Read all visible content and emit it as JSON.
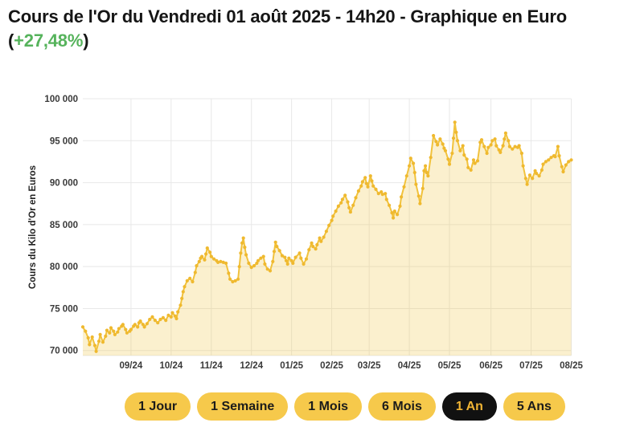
{
  "header": {
    "title": "Cours de l'Or du Vendredi 01 août 2025 - 14h20 - Graphique en Euro",
    "change": {
      "prefix": "(",
      "value": "+27,48%",
      "suffix": ")"
    }
  },
  "colors": {
    "accent_yellow": "#F6C94B",
    "active_pill_bg": "#111111",
    "active_pill_text": "#F0B434",
    "pill_text": "#1b1b1b",
    "positive_green": "#56B35C",
    "line": "#F1C23C",
    "marker": "#EFB92F",
    "area_fill": "#F1C23C",
    "grid": "#E8E8E8",
    "axis_text": "#3a3a3a"
  },
  "chart_data": {
    "type": "area",
    "title": "",
    "ylabel": "Cours du Kilo d'Or en Euros",
    "xlabel": "",
    "grid": true,
    "legend": "none",
    "x_start": "2024-08-01",
    "x_end": "2025-08-01",
    "x_span_days": 365,
    "ylim": [
      69400,
      100000
    ],
    "y_ticks": [
      {
        "value": 70000,
        "label": "70 000"
      },
      {
        "value": 75000,
        "label": "75 000"
      },
      {
        "value": 80000,
        "label": "80 000"
      },
      {
        "value": 85000,
        "label": "85 000"
      },
      {
        "value": 90000,
        "label": "90 000"
      },
      {
        "value": 95000,
        "label": "95 000"
      },
      {
        "value": 100000,
        "label": "100 000"
      }
    ],
    "x_ticks": [
      {
        "day": 36,
        "label": "09/24"
      },
      {
        "day": 66,
        "label": "10/24"
      },
      {
        "day": 96,
        "label": "11/24"
      },
      {
        "day": 126,
        "label": "12/24"
      },
      {
        "day": 156,
        "label": "01/25"
      },
      {
        "day": 186,
        "label": "02/25"
      },
      {
        "day": 214,
        "label": "03/25"
      },
      {
        "day": 244,
        "label": "04/25"
      },
      {
        "day": 274,
        "label": "05/25"
      },
      {
        "day": 305,
        "label": "06/25"
      },
      {
        "day": 335,
        "label": "07/25"
      },
      {
        "day": 365,
        "label": "08/25"
      }
    ],
    "series": [
      {
        "name": "Cours du Kilo d'Or en Euros",
        "points": [
          [
            0,
            72800
          ],
          [
            2,
            72300
          ],
          [
            4,
            71500
          ],
          [
            5,
            70700
          ],
          [
            7,
            71600
          ],
          [
            9,
            70600
          ],
          [
            10,
            69900
          ],
          [
            12,
            71100
          ],
          [
            13,
            71900
          ],
          [
            15,
            71000
          ],
          [
            17,
            71700
          ],
          [
            18,
            72400
          ],
          [
            20,
            72100
          ],
          [
            21,
            72700
          ],
          [
            23,
            72300
          ],
          [
            24,
            71900
          ],
          [
            26,
            72200
          ],
          [
            27,
            72600
          ],
          [
            29,
            72900
          ],
          [
            30,
            73100
          ],
          [
            32,
            72500
          ],
          [
            33,
            72100
          ],
          [
            35,
            72300
          ],
          [
            36,
            72500
          ],
          [
            38,
            72900
          ],
          [
            39,
            73100
          ],
          [
            41,
            72800
          ],
          [
            42,
            73300
          ],
          [
            43,
            73500
          ],
          [
            45,
            73100
          ],
          [
            46,
            72800
          ],
          [
            48,
            73200
          ],
          [
            50,
            73700
          ],
          [
            52,
            74000
          ],
          [
            54,
            73600
          ],
          [
            56,
            73300
          ],
          [
            58,
            73700
          ],
          [
            60,
            73900
          ],
          [
            62,
            73600
          ],
          [
            64,
            74200
          ],
          [
            66,
            74000
          ],
          [
            67,
            74500
          ],
          [
            69,
            74100
          ],
          [
            70,
            73800
          ],
          [
            71,
            74600
          ],
          [
            73,
            75400
          ],
          [
            74,
            76200
          ],
          [
            75,
            77000
          ],
          [
            76,
            77600
          ],
          [
            78,
            78300
          ],
          [
            80,
            78600
          ],
          [
            82,
            78200
          ],
          [
            84,
            79300
          ],
          [
            85,
            80100
          ],
          [
            87,
            80600
          ],
          [
            88,
            81000
          ],
          [
            89,
            81200
          ],
          [
            91,
            80800
          ],
          [
            92,
            81500
          ],
          [
            93,
            82200
          ],
          [
            95,
            81700
          ],
          [
            96,
            81200
          ],
          [
            98,
            80900
          ],
          [
            100,
            80700
          ],
          [
            101,
            80500
          ],
          [
            103,
            80600
          ],
          [
            105,
            80500
          ],
          [
            107,
            80400
          ],
          [
            109,
            79200
          ],
          [
            110,
            78500
          ],
          [
            112,
            78200
          ],
          [
            114,
            78300
          ],
          [
            116,
            78500
          ],
          [
            117,
            80000
          ],
          [
            118,
            81600
          ],
          [
            119,
            82800
          ],
          [
            120,
            83400
          ],
          [
            121,
            82300
          ],
          [
            122,
            81400
          ],
          [
            124,
            80400
          ],
          [
            126,
            79900
          ],
          [
            128,
            80100
          ],
          [
            130,
            80400
          ],
          [
            131,
            80700
          ],
          [
            133,
            81000
          ],
          [
            135,
            81200
          ],
          [
            136,
            80300
          ],
          [
            138,
            79700
          ],
          [
            140,
            79500
          ],
          [
            142,
            80600
          ],
          [
            143,
            81800
          ],
          [
            144,
            82900
          ],
          [
            145,
            82400
          ],
          [
            147,
            81900
          ],
          [
            149,
            81300
          ],
          [
            151,
            81100
          ],
          [
            152,
            80700
          ],
          [
            153,
            80300
          ],
          [
            154,
            81000
          ],
          [
            156,
            80700
          ],
          [
            157,
            80400
          ],
          [
            159,
            81100
          ],
          [
            162,
            81600
          ],
          [
            163,
            81000
          ],
          [
            165,
            80300
          ],
          [
            167,
            80900
          ],
          [
            169,
            82000
          ],
          [
            171,
            82800
          ],
          [
            172,
            82400
          ],
          [
            174,
            82100
          ],
          [
            175,
            82600
          ],
          [
            177,
            83400
          ],
          [
            178,
            83000
          ],
          [
            180,
            83500
          ],
          [
            182,
            84200
          ],
          [
            184,
            84900
          ],
          [
            186,
            85500
          ],
          [
            187,
            86000
          ],
          [
            189,
            86600
          ],
          [
            191,
            87200
          ],
          [
            193,
            87600
          ],
          [
            194,
            88000
          ],
          [
            196,
            88500
          ],
          [
            198,
            87700
          ],
          [
            199,
            87000
          ],
          [
            200,
            86500
          ],
          [
            202,
            87300
          ],
          [
            204,
            88200
          ],
          [
            206,
            89000
          ],
          [
            208,
            89600
          ],
          [
            209,
            90100
          ],
          [
            211,
            90600
          ],
          [
            212,
            89900
          ],
          [
            213,
            89500
          ],
          [
            215,
            90800
          ],
          [
            216,
            90200
          ],
          [
            217,
            89600
          ],
          [
            219,
            89200
          ],
          [
            221,
            88700
          ],
          [
            223,
            88900
          ],
          [
            224,
            88600
          ],
          [
            226,
            88700
          ],
          [
            227,
            88000
          ],
          [
            229,
            87300
          ],
          [
            231,
            86400
          ],
          [
            232,
            85800
          ],
          [
            233,
            86600
          ],
          [
            235,
            86200
          ],
          [
            237,
            87200
          ],
          [
            238,
            88300
          ],
          [
            240,
            89500
          ],
          [
            242,
            90800
          ],
          [
            244,
            92000
          ],
          [
            245,
            92900
          ],
          [
            247,
            92300
          ],
          [
            248,
            91200
          ],
          [
            249,
            89800
          ],
          [
            251,
            88400
          ],
          [
            252,
            87500
          ],
          [
            254,
            89300
          ],
          [
            255,
            91400
          ],
          [
            256,
            92000
          ],
          [
            257,
            91200
          ],
          [
            258,
            90800
          ],
          [
            260,
            93000
          ],
          [
            262,
            95600
          ],
          [
            264,
            94900
          ],
          [
            265,
            94500
          ],
          [
            267,
            95200
          ],
          [
            269,
            94600
          ],
          [
            270,
            94100
          ],
          [
            271,
            93800
          ],
          [
            273,
            92800
          ],
          [
            274,
            92200
          ],
          [
            276,
            93500
          ],
          [
            277,
            95300
          ],
          [
            278,
            97200
          ],
          [
            279,
            96000
          ],
          [
            280,
            95000
          ],
          [
            282,
            93800
          ],
          [
            284,
            94400
          ],
          [
            285,
            93300
          ],
          [
            287,
            92800
          ],
          [
            288,
            91800
          ],
          [
            290,
            91500
          ],
          [
            292,
            92700
          ],
          [
            293,
            92300
          ],
          [
            295,
            92600
          ],
          [
            297,
            94800
          ],
          [
            298,
            95100
          ],
          [
            300,
            94300
          ],
          [
            302,
            93500
          ],
          [
            303,
            94200
          ],
          [
            305,
            94500
          ],
          [
            306,
            95000
          ],
          [
            308,
            95200
          ],
          [
            309,
            94400
          ],
          [
            311,
            93900
          ],
          [
            312,
            93600
          ],
          [
            314,
            94400
          ],
          [
            315,
            95200
          ],
          [
            316,
            95900
          ],
          [
            318,
            95000
          ],
          [
            319,
            94300
          ],
          [
            321,
            94000
          ],
          [
            323,
            94300
          ],
          [
            325,
            94200
          ],
          [
            326,
            94400
          ],
          [
            328,
            93500
          ],
          [
            329,
            92000
          ],
          [
            331,
            90500
          ],
          [
            332,
            89800
          ],
          [
            334,
            90900
          ],
          [
            336,
            90500
          ],
          [
            338,
            91400
          ],
          [
            339,
            91100
          ],
          [
            341,
            90800
          ],
          [
            343,
            91500
          ],
          [
            344,
            92200
          ],
          [
            346,
            92500
          ],
          [
            348,
            92700
          ],
          [
            350,
            93000
          ],
          [
            352,
            93200
          ],
          [
            353,
            93100
          ],
          [
            355,
            94300
          ],
          [
            356,
            93200
          ],
          [
            358,
            91900
          ],
          [
            359,
            91300
          ],
          [
            361,
            92100
          ],
          [
            363,
            92500
          ],
          [
            365,
            92700
          ]
        ]
      }
    ]
  },
  "range_buttons": [
    {
      "label": "1 Jour",
      "active": false
    },
    {
      "label": "1 Semaine",
      "active": false
    },
    {
      "label": "1 Mois",
      "active": false
    },
    {
      "label": "6 Mois",
      "active": false
    },
    {
      "label": "1 An",
      "active": true
    },
    {
      "label": "5 Ans",
      "active": false
    }
  ]
}
